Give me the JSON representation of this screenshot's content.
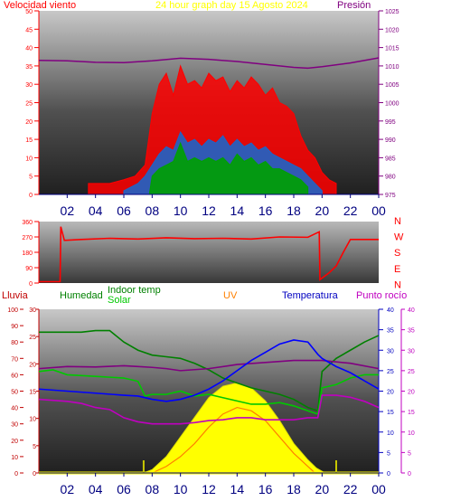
{
  "chart_data": [
    {
      "type": "line",
      "panel": "wind_pressure",
      "title": "24 hour graph day   15 Agosto 2024",
      "left_label": "Velocidad viento",
      "right_label": "Presión",
      "y_left_ticks": [
        0,
        5,
        10,
        15,
        20,
        25,
        30,
        35,
        40,
        45,
        50
      ],
      "ylim_left": [
        0,
        50
      ],
      "y_right_ticks": [
        975,
        980,
        985,
        990,
        995,
        1000,
        1005,
        1010,
        1015,
        1020,
        1025
      ],
      "ylim_right": [
        975,
        1025
      ],
      "x_ticks": [
        "02",
        "04",
        "06",
        "08",
        "10",
        "12",
        "14",
        "16",
        "18",
        "20",
        "22",
        "00"
      ],
      "xlim_hours": [
        0,
        24
      ],
      "series": [
        {
          "role": "gust",
          "axis": "left",
          "x": [
            3.5,
            5.0,
            6.0,
            6.8,
            7.5,
            8.0,
            8.5,
            9.0,
            9.5,
            10.0,
            10.5,
            11.0,
            11.5,
            12.0,
            12.5,
            13.0,
            13.5,
            14.0,
            14.5,
            15.0,
            15.5,
            16.0,
            16.5,
            17.0,
            17.5,
            18.0,
            18.5,
            19.0,
            19.5,
            20.0,
            20.5,
            21.0
          ],
          "y": [
            3,
            3,
            4,
            5,
            8,
            22,
            30,
            33,
            27,
            35,
            30,
            31,
            29,
            33,
            31,
            32,
            28,
            31,
            29,
            32,
            30,
            27,
            29,
            25,
            24,
            22,
            16,
            12,
            10,
            6,
            4,
            3
          ]
        },
        {
          "role": "average",
          "axis": "left",
          "x": [
            6.0,
            7.0,
            7.5,
            8.0,
            8.5,
            9.0,
            9.5,
            10.0,
            10.5,
            11.0,
            11.5,
            12.0,
            12.5,
            13.0,
            13.5,
            14.0,
            14.5,
            15.0,
            15.5,
            16.0,
            16.5,
            17.0,
            17.5,
            18.0,
            18.5,
            19.0,
            19.5,
            20.0
          ],
          "y": [
            1,
            3,
            5,
            8,
            11,
            13,
            12,
            17,
            14,
            15,
            13,
            15,
            14,
            16,
            13,
            15,
            13,
            14,
            12,
            13,
            11,
            10,
            9,
            8,
            7,
            5,
            3,
            1
          ]
        },
        {
          "role": "speed",
          "axis": "left",
          "x": [
            7.8,
            8.0,
            8.5,
            9.0,
            9.5,
            10.0,
            10.5,
            11.0,
            11.5,
            12.0,
            12.5,
            13.0,
            13.5,
            14.0,
            14.5,
            15.0,
            15.5,
            16.0,
            16.5,
            17.0,
            17.5,
            18.0,
            18.5,
            19.0
          ],
          "y": [
            0,
            5,
            7,
            8,
            9,
            14,
            9,
            10,
            9,
            10,
            9,
            10,
            8,
            11,
            9,
            10,
            8,
            9,
            7,
            7,
            6,
            5,
            4,
            2
          ]
        },
        {
          "role": "pressure",
          "axis": "right",
          "x": [
            0,
            2,
            4,
            6,
            8,
            10,
            12,
            14,
            16,
            18,
            19,
            20,
            22,
            24
          ],
          "y": [
            1011.5,
            1011.4,
            1011.0,
            1010.9,
            1011.4,
            1012.1,
            1011.8,
            1011.2,
            1010.4,
            1009.6,
            1009.4,
            1009.8,
            1010.8,
            1012.2
          ]
        }
      ]
    },
    {
      "type": "line",
      "panel": "wind_direction",
      "y_left_ticks": [
        0,
        90,
        180,
        270,
        360
      ],
      "ylim": [
        0,
        360
      ],
      "right_labels": [
        "N",
        "W",
        "S",
        "E",
        "N"
      ],
      "series": [
        {
          "role": "direction",
          "x": [
            0,
            1.5,
            1.55,
            1.8,
            3,
            5,
            7,
            9,
            11,
            13,
            15,
            17,
            19,
            19.8,
            19.85,
            20.5,
            21.0,
            21.5,
            22.0,
            24
          ],
          "y": [
            8,
            8,
            330,
            250,
            255,
            262,
            258,
            265,
            260,
            262,
            258,
            270,
            268,
            300,
            20,
            60,
            100,
            180,
            255,
            255
          ]
        }
      ]
    },
    {
      "type": "line",
      "panel": "temperature_humidity_solar",
      "labels": {
        "rain": "Lluvia",
        "humidity": "Humedad",
        "indoor": "Indoor temp",
        "solar": "Solar",
        "uv": "UV",
        "temp": "Temperatura",
        "dew": "Punto rocío"
      },
      "y_rain_ticks": [
        0,
        10,
        20,
        30,
        40,
        50,
        60,
        70,
        80,
        90,
        100
      ],
      "y_hum_ticks": [
        0,
        5,
        10,
        15,
        20,
        25,
        30
      ],
      "y_temp_ticks": [
        0,
        5,
        10,
        15,
        20,
        25,
        30,
        35,
        40
      ],
      "y_dew_ticks": [
        0,
        5,
        10,
        15,
        20,
        25,
        30,
        35,
        40
      ],
      "ylim_percent": [
        0,
        100
      ],
      "ylim_temp": [
        0,
        40
      ],
      "series": [
        {
          "role": "humidity",
          "axis": "percent",
          "x": [
            0,
            2,
            3,
            4,
            5,
            6,
            7,
            8,
            9,
            10,
            11,
            12,
            13,
            14,
            15,
            16,
            17,
            18,
            19,
            19.7,
            20,
            21,
            22,
            23,
            24
          ],
          "y": [
            86,
            86,
            86,
            87,
            87,
            80,
            75,
            72,
            71,
            70,
            67,
            63,
            58,
            55,
            52,
            50,
            48,
            45,
            40,
            38,
            62,
            70,
            75,
            80,
            84
          ]
        },
        {
          "role": "indoor_temp",
          "axis": "temp",
          "x": [
            0,
            2,
            4,
            6,
            7,
            8,
            9,
            10,
            12,
            14,
            16,
            18,
            19,
            20,
            22,
            24
          ],
          "y": [
            25.5,
            26.0,
            25.9,
            26.2,
            26.0,
            25.8,
            25.5,
            25.0,
            25.5,
            26.5,
            27.0,
            27.5,
            27.5,
            27.5,
            26.8,
            25.5
          ]
        },
        {
          "role": "solar",
          "axis": "percent",
          "x": [
            0,
            1,
            2,
            4,
            6,
            7,
            7.5,
            8,
            9,
            10,
            11,
            12,
            13,
            14,
            15,
            16,
            17,
            18,
            19,
            19.7,
            20,
            21,
            22,
            23,
            24
          ],
          "y": [
            62,
            63,
            60,
            59,
            58,
            56,
            47,
            48,
            48,
            50,
            47,
            48,
            46,
            44,
            42,
            42,
            43,
            41,
            38,
            36,
            52,
            54,
            58,
            60,
            60
          ]
        },
        {
          "role": "solar_radiation",
          "axis": "percent",
          "x": [
            7.4,
            8.0,
            9.0,
            10.0,
            11.0,
            12.0,
            13.0,
            14.0,
            15.0,
            16.0,
            17.0,
            18.0,
            19.0,
            19.6,
            20.2
          ],
          "y": [
            0,
            2,
            10,
            22,
            34,
            46,
            53,
            55,
            52,
            44,
            32,
            18,
            8,
            3,
            0
          ]
        },
        {
          "role": "uv",
          "axis": "percent",
          "x": [
            8.0,
            9.0,
            10.0,
            11.0,
            12.0,
            13.0,
            14.0,
            15.0,
            16.0,
            17.0,
            18.0,
            19.0,
            19.5
          ],
          "y": [
            0,
            4,
            10,
            18,
            28,
            36,
            40,
            38,
            32,
            22,
            12,
            4,
            0
          ]
        },
        {
          "role": "temperature",
          "axis": "temp",
          "x": [
            0,
            2,
            4,
            6,
            7,
            8,
            9,
            10,
            11,
            12,
            13,
            14,
            15,
            16,
            17,
            18,
            19,
            19.7,
            20,
            21,
            22,
            23,
            24
          ],
          "y": [
            20.5,
            20.0,
            19.5,
            19.0,
            18.8,
            18.0,
            17.5,
            18.0,
            19.0,
            20.5,
            22.5,
            25.0,
            27.5,
            29.5,
            31.5,
            32.5,
            32.0,
            29.0,
            28.0,
            26.0,
            24.5,
            22.5,
            20.5
          ]
        },
        {
          "role": "dew_point",
          "axis": "temp",
          "x": [
            0,
            2,
            3,
            4,
            5,
            6,
            7,
            8,
            9,
            10,
            11,
            12,
            13,
            14,
            15,
            16,
            17,
            18,
            19,
            19.7,
            20,
            21,
            22,
            23,
            24
          ],
          "y": [
            18.0,
            17.5,
            17.0,
            16.0,
            15.5,
            13.5,
            12.5,
            12.0,
            12.0,
            12.0,
            12.3,
            12.8,
            13.0,
            13.5,
            13.5,
            13.0,
            13.0,
            13.0,
            13.5,
            13.5,
            19.0,
            19.0,
            18.5,
            17.5,
            16.0
          ]
        },
        {
          "role": "rain",
          "axis": "percent",
          "x": [
            0,
            24
          ],
          "y": [
            0,
            0
          ]
        }
      ],
      "rain_ticks_at": [
        7.4,
        21.0
      ],
      "x_ticks": [
        "02",
        "04",
        "06",
        "08",
        "10",
        "12",
        "14",
        "16",
        "18",
        "20",
        "22",
        "00"
      ]
    }
  ],
  "colors": {
    "gust": "#ff0000",
    "average": "#1e64c8",
    "speed": "#00a000",
    "pressure": "#800080",
    "direction": "#ff0000",
    "humidity": "#008000",
    "indoor_temp": "#00c800",
    "solar_label": "#00c800",
    "uv": "#ff8000",
    "temperature": "#0000ff",
    "dew_point": "#c000c0",
    "rain": "#c00000",
    "solar_fill": "#ffff00",
    "title": "#ffff00",
    "axis_left_red": "#ff0000",
    "axis_right_purple": "#800080",
    "axis_ticks_blue": "#0000c0",
    "xaxis_text": "#000080"
  }
}
